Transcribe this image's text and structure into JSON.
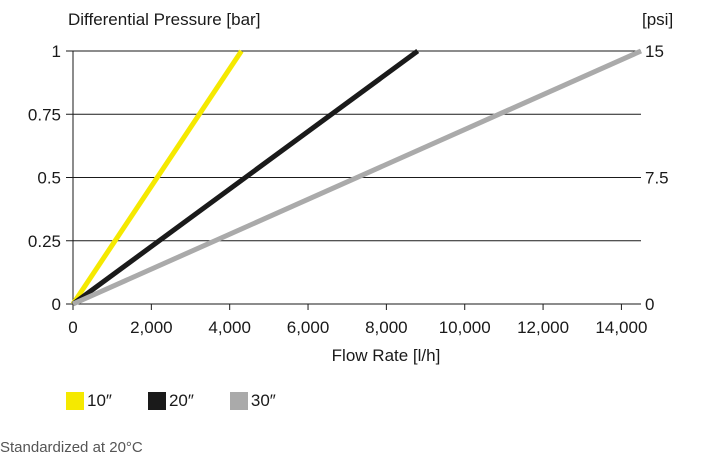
{
  "chart_data": {
    "type": "line",
    "title": "",
    "xlabel": "Flow Rate [l/h]",
    "ylabel": "Differential Pressure [bar]",
    "y2label": "[psi]",
    "xlim": [
      0,
      14500
    ],
    "ylim": [
      0,
      1
    ],
    "y2lim": [
      0,
      15
    ],
    "xticks": [
      0,
      2000,
      4000,
      6000,
      8000,
      10000,
      12000,
      14000
    ],
    "xtick_labels": [
      "0",
      "2,000",
      "4,000",
      "6,000",
      "8,000",
      "10,000",
      "12,000",
      "14,000"
    ],
    "yticks": [
      0,
      0.25,
      0.5,
      0.75,
      1
    ],
    "ytick_labels": [
      "0",
      "0.25",
      "0.5",
      "0.75",
      "1"
    ],
    "y2ticks": [
      0,
      7.5,
      15
    ],
    "y2tick_labels": [
      "0",
      "7.5",
      "15"
    ],
    "grid": true,
    "legend_position": "bottom-left",
    "series": [
      {
        "name": "10″",
        "color": "#f5e900",
        "x": [
          0,
          4300
        ],
        "y": [
          0,
          1
        ]
      },
      {
        "name": "20″",
        "color": "#1a1a1a",
        "x": [
          0,
          8800
        ],
        "y": [
          0,
          1
        ]
      },
      {
        "name": "30″",
        "color": "#aaaaaa",
        "x": [
          0,
          14500
        ],
        "y": [
          0,
          1
        ]
      }
    ]
  },
  "footnote": "Standardized at 20°C"
}
